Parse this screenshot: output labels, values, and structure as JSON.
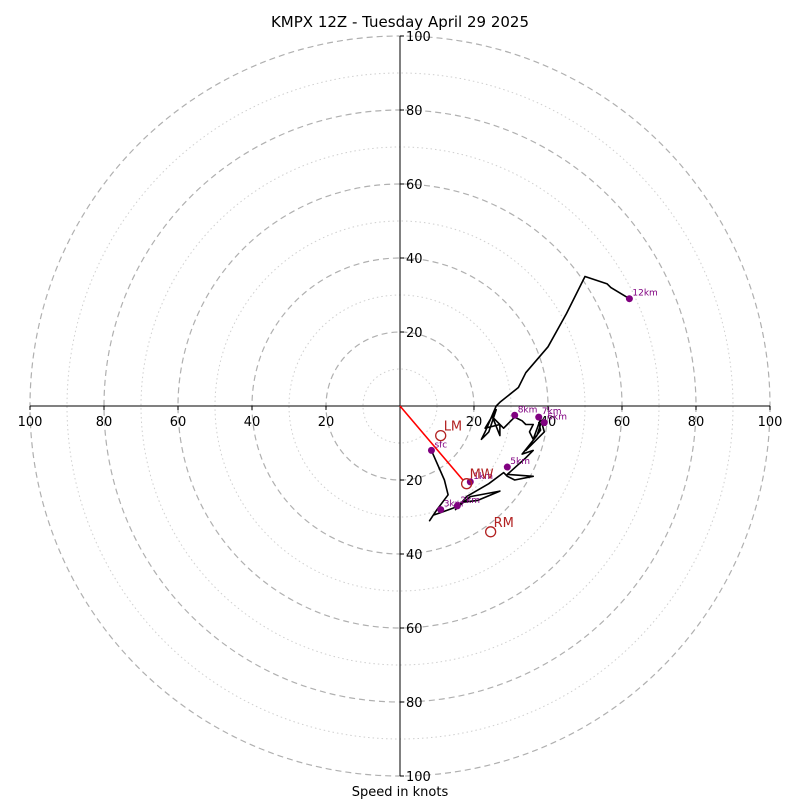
{
  "chart_data": {
    "type": "hodograph",
    "title": "KMPX 12Z - Tuesday April 29 2025",
    "xlabel": "Speed in knots",
    "range_knots": 100,
    "ring_major_step": 20,
    "ring_minor_step": 10,
    "axis_tick_values": [
      20,
      40,
      60,
      80,
      100
    ],
    "axis_tick_labels": [
      "20",
      "40",
      "60",
      "80",
      "100"
    ],
    "grid": true,
    "colors": {
      "trace": "#000000",
      "height_marker": "#800080",
      "storm_motion": "#b22222",
      "bunkers_vector": "#ff0000",
      "major_ring": "#b0b0b0",
      "minor_ring": "#cfcfcf",
      "axis": "#000000"
    },
    "hodograph_trace": [
      [
        8.5,
        -12
      ],
      [
        12,
        -20
      ],
      [
        13,
        -24
      ],
      [
        10,
        -28
      ],
      [
        8,
        -31
      ],
      [
        9,
        -29.5
      ],
      [
        10.5,
        -29
      ],
      [
        16,
        -27
      ],
      [
        19,
        -24.5
      ],
      [
        27,
        -23
      ],
      [
        21,
        -25.5
      ],
      [
        17,
        -26
      ],
      [
        15,
        -28
      ],
      [
        18,
        -24.5
      ],
      [
        24,
        -21
      ],
      [
        28,
        -18
      ],
      [
        29,
        -19
      ],
      [
        31,
        -20
      ],
      [
        36,
        -19
      ],
      [
        29,
        -18.5
      ],
      [
        34,
        -14
      ],
      [
        36,
        -12
      ],
      [
        33,
        -13
      ],
      [
        37,
        -8
      ],
      [
        38,
        -5
      ],
      [
        37.5,
        -4.5
      ],
      [
        38,
        -6.5
      ],
      [
        34,
        -12
      ],
      [
        39,
        -7
      ],
      [
        38,
        -3.5
      ],
      [
        36,
        -9
      ],
      [
        35,
        -7
      ],
      [
        36,
        -5
      ],
      [
        34,
        -5
      ],
      [
        33,
        -4
      ],
      [
        31,
        -3
      ],
      [
        29,
        -5
      ],
      [
        28,
        -6
      ],
      [
        27,
        -5
      ],
      [
        27,
        -8
      ],
      [
        25,
        -3
      ],
      [
        27,
        -5
      ],
      [
        23,
        -6
      ],
      [
        26,
        -1
      ],
      [
        24,
        -7
      ],
      [
        22,
        -9
      ],
      [
        23,
        -7
      ],
      [
        26,
        0
      ],
      [
        27,
        1
      ],
      [
        32,
        5
      ],
      [
        34,
        9
      ],
      [
        40,
        16
      ],
      [
        45,
        25
      ],
      [
        50,
        35
      ],
      [
        56,
        33
      ],
      [
        57,
        32
      ],
      [
        62,
        29
      ]
    ],
    "height_markers": [
      {
        "label": "sfc",
        "u": 8.5,
        "v": -12
      },
      {
        "label": "1km",
        "u": 19,
        "v": -20.5
      },
      {
        "label": "2km",
        "u": 15.5,
        "v": -27
      },
      {
        "label": "3km",
        "u": 11,
        "v": -28
      },
      {
        "label": "5km",
        "u": 29,
        "v": -16.5
      },
      {
        "label": "6km",
        "u": 39,
        "v": -4.5
      },
      {
        "label": "7km",
        "u": 37.5,
        "v": -3
      },
      {
        "label": "8km",
        "u": 31,
        "v": -2.5
      },
      {
        "label": "12km",
        "u": 62,
        "v": 29
      }
    ],
    "storm_motions": [
      {
        "label": "LM",
        "u": 11,
        "v": -8
      },
      {
        "label": "MW",
        "u": 18,
        "v": -21
      },
      {
        "label": "RM",
        "u": 24.5,
        "v": -34
      }
    ],
    "bunkers_vector": {
      "u": 17,
      "v": -20
    }
  }
}
